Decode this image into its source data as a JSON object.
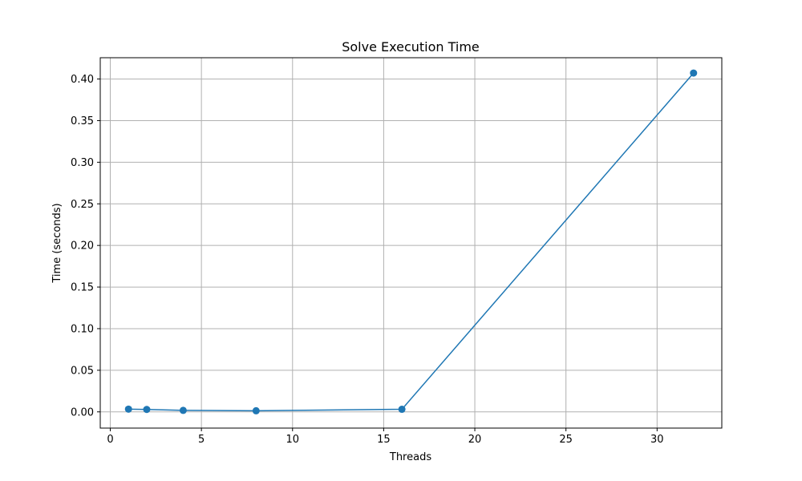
{
  "chart_data": {
    "type": "line",
    "title": "Solve Execution Time",
    "xlabel": "Threads",
    "ylabel": "Time (seconds)",
    "xlim": [
      -0.55,
      33.55
    ],
    "ylim": [
      -0.0195,
      0.4256
    ],
    "x_ticks": [
      0,
      5,
      10,
      15,
      20,
      25,
      30
    ],
    "y_ticks": [
      0.0,
      0.05,
      0.1,
      0.15,
      0.2,
      0.25,
      0.3,
      0.35,
      0.4
    ],
    "x_tick_labels": [
      "0",
      "5",
      "10",
      "15",
      "20",
      "25",
      "30"
    ],
    "y_tick_labels": [
      "0.00",
      "0.05",
      "0.10",
      "0.15",
      "0.20",
      "0.25",
      "0.30",
      "0.35",
      "0.40"
    ],
    "grid": true,
    "series": [
      {
        "x": [
          1,
          2,
          4,
          8,
          16,
          32
        ],
        "y": [
          0.0033,
          0.0029,
          0.0018,
          0.0013,
          0.0031,
          0.4072
        ],
        "color": "#1f77b4",
        "marker": "circle"
      }
    ]
  }
}
